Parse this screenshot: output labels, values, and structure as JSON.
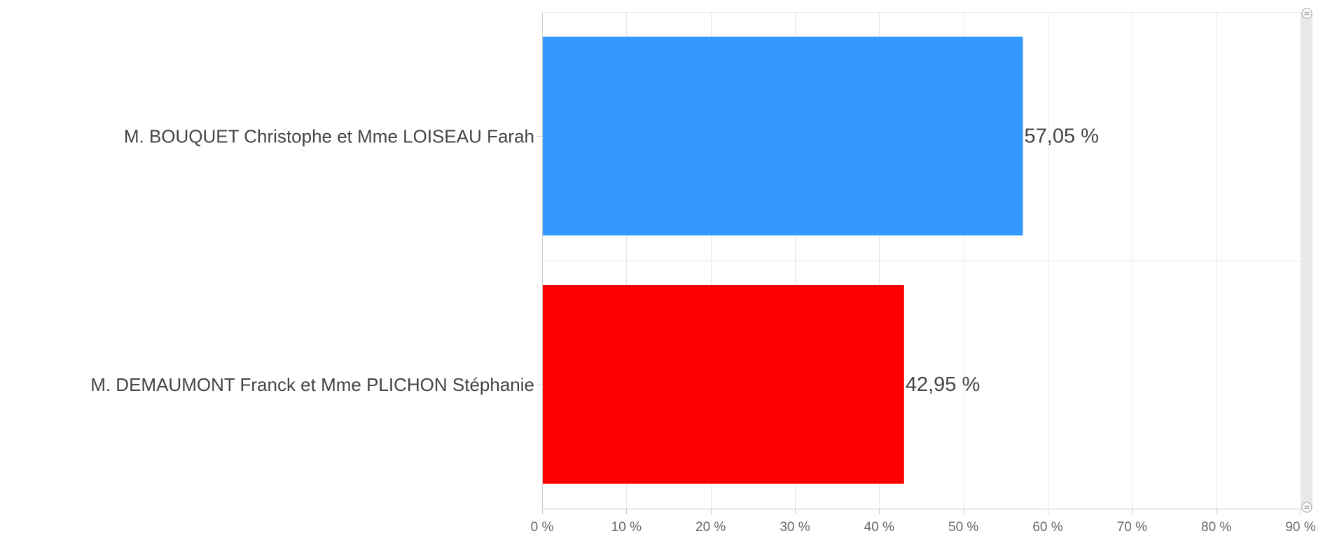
{
  "chart_data": {
    "type": "bar",
    "orientation": "horizontal",
    "categories": [
      "M. BOUQUET Christophe et Mme LOISEAU Farah",
      "M. DEMAUMONT Franck et Mme PLICHON Stéphanie"
    ],
    "values": [
      57.05,
      42.95
    ],
    "data_labels": [
      "57,05 %",
      "42,95 %"
    ],
    "bar_colors": [
      "#3399ff",
      "#ff0000"
    ],
    "xlim": [
      0,
      90
    ],
    "x_ticks": [
      0,
      10,
      20,
      30,
      40,
      50,
      60,
      70,
      80,
      90
    ],
    "x_tick_labels": [
      "0 %",
      "10 %",
      "20 %",
      "30 %",
      "40 %",
      "50 %",
      "60 %",
      "70 %",
      "80 %",
      "90 %"
    ],
    "grid": true,
    "legend": "none",
    "title": "",
    "xlabel": "",
    "ylabel": ""
  },
  "scrollbar": {
    "orientation": "vertical",
    "handles": [
      "top-handle",
      "bottom-handle"
    ]
  }
}
